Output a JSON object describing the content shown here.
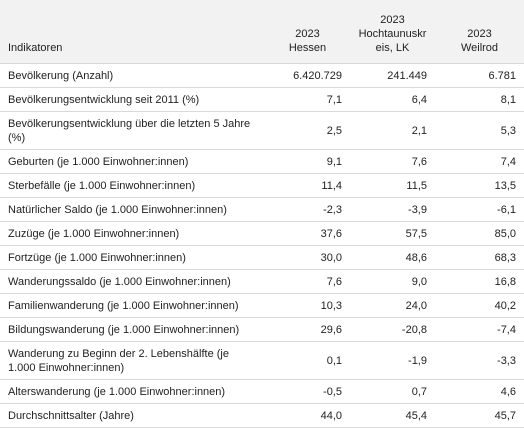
{
  "table": {
    "header": [
      "Indikatoren",
      {
        "year": "2023",
        "name": "Hessen"
      },
      {
        "year": "2023",
        "name": "Hochtaunuskreis, LK"
      },
      {
        "year": "2023",
        "name": "Weilrod"
      }
    ],
    "rows": [
      [
        "Bevölkerung (Anzahl)",
        "6.420.729",
        "241.449",
        "6.781"
      ],
      [
        "Bevölkerungsentwicklung seit 2011 (%)",
        "7,1",
        "6,4",
        "8,1"
      ],
      [
        "Bevölkerungsentwicklung über die letzten 5 Jahre (%)",
        "2,5",
        "2,1",
        "5,3"
      ],
      [
        "Geburten (je 1.000 Einwohner:innen)",
        "9,1",
        "7,6",
        "7,4"
      ],
      [
        "Sterbefälle (je 1.000 Einwohner:innen)",
        "11,4",
        "11,5",
        "13,5"
      ],
      [
        "Natürlicher Saldo (je 1.000 Einwohner:innen)",
        "-2,3",
        "-3,9",
        "-6,1"
      ],
      [
        "Zuzüge (je 1.000 Einwohner:innen)",
        "37,6",
        "57,5",
        "85,0"
      ],
      [
        "Fortzüge (je 1.000 Einwohner:innen)",
        "30,0",
        "48,6",
        "68,3"
      ],
      [
        "Wanderungssaldo (je 1.000 Einwohner:innen)",
        "7,6",
        "9,0",
        "16,8"
      ],
      [
        "Familienwanderung (je 1.000 Einwohner:innen)",
        "10,3",
        "24,0",
        "40,2"
      ],
      [
        "Bildungswanderung (je 1.000 Einwohner:innen)",
        "29,6",
        "-20,8",
        "-7,4"
      ],
      [
        "Wanderung zu Beginn der 2. Lebenshälfte (je 1.000 Einwohner:innen)",
        "0,1",
        "-1,9",
        "-3,3"
      ],
      [
        "Alterswanderung (je 1.000 Einwohner:innen)",
        "-0,5",
        "0,7",
        "4,6"
      ],
      [
        "Durchschnittsalter (Jahre)",
        "44,0",
        "45,4",
        "45,7"
      ]
    ]
  }
}
